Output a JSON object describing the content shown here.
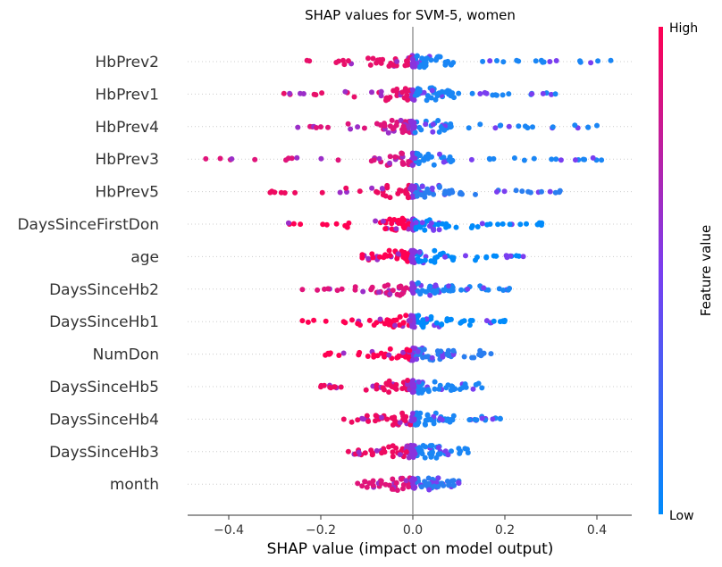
{
  "chart_data": {
    "type": "scatter",
    "title": "SHAP values for SVM-5, women",
    "xlabel": "SHAP value (impact on model output)",
    "xlim": [
      -0.49,
      0.47
    ],
    "xticks": [
      "-0.4",
      "-0.2",
      "0.0",
      "0.2",
      "0.4"
    ],
    "xtick_values": [
      -0.4,
      -0.2,
      0.0,
      0.2,
      0.4
    ],
    "colorbar": {
      "title": "Feature value",
      "high_label": "High",
      "low_label": "Low",
      "high_color": "#ff0052",
      "low_color": "#008bfb"
    },
    "features": [
      {
        "name": "HbPrev2",
        "min": -0.23,
        "max": 0.43,
        "neg_color": "#e8106a",
        "pos_color": "#1a86f5"
      },
      {
        "name": "HbPrev1",
        "min": -0.28,
        "max": 0.31,
        "neg_color": "#e8106a",
        "pos_color": "#1a86f5"
      },
      {
        "name": "HbPrev4",
        "min": -0.25,
        "max": 0.4,
        "neg_color": "#e0147a",
        "pos_color": "#1a86f5"
      },
      {
        "name": "HbPrev3",
        "min": -0.45,
        "max": 0.41,
        "neg_color": "#e0147a",
        "pos_color": "#1a86f5"
      },
      {
        "name": "HbPrev5",
        "min": -0.31,
        "max": 0.32,
        "neg_color": "#ee0a60",
        "pos_color": "#2a7ef0"
      },
      {
        "name": "DaysSinceFirstDon",
        "min": -0.27,
        "max": 0.28,
        "neg_color": "#ff0052",
        "pos_color": "#008bfb"
      },
      {
        "name": "age",
        "min": -0.11,
        "max": 0.24,
        "neg_color": "#ff0052",
        "pos_color": "#008bfb"
      },
      {
        "name": "DaysSinceHb2",
        "min": -0.24,
        "max": 0.21,
        "neg_color": "#e0147a",
        "pos_color": "#1a86f5"
      },
      {
        "name": "DaysSinceHb1",
        "min": -0.24,
        "max": 0.2,
        "neg_color": "#ff0052",
        "pos_color": "#008bfb"
      },
      {
        "name": "NumDon",
        "min": -0.19,
        "max": 0.17,
        "neg_color": "#ff0052",
        "pos_color": "#2a7ef0"
      },
      {
        "name": "DaysSinceHb5",
        "min": -0.2,
        "max": 0.15,
        "neg_color": "#ee0a60",
        "pos_color": "#1a86f5"
      },
      {
        "name": "DaysSinceHb4",
        "min": -0.15,
        "max": 0.19,
        "neg_color": "#ee0a60",
        "pos_color": "#1a86f5"
      },
      {
        "name": "DaysSinceHb3",
        "min": -0.14,
        "max": 0.12,
        "neg_color": "#ee0a60",
        "pos_color": "#1a86f5"
      },
      {
        "name": "month",
        "min": -0.12,
        "max": 0.1,
        "neg_color": "#e0147a",
        "pos_color": "#2a7ef0"
      }
    ]
  }
}
